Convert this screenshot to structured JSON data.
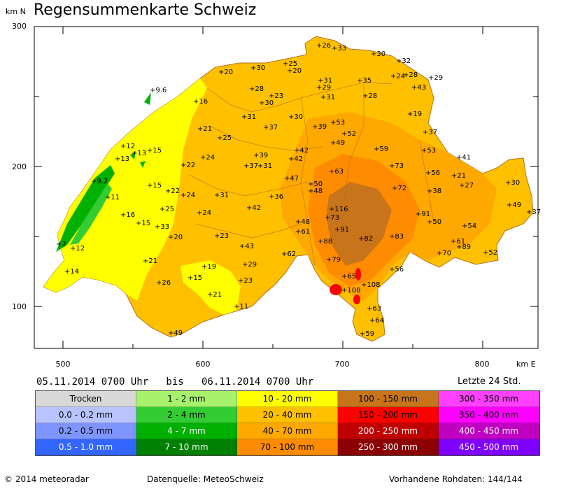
{
  "title": "Regensummenkarte Schweiz",
  "axes": {
    "y_unit": "km N",
    "x_unit": "km E",
    "y_ticks": [
      "300",
      "200",
      "100"
    ],
    "x_ticks": [
      "500",
      "600",
      "700",
      "800"
    ]
  },
  "period": "05.11.2014 0700 Uhr   bis   06.11.2014 0700 Uhr",
  "window_label": "Letzte 24 Std.",
  "legend": [
    {
      "label": "Trocken",
      "color": "#d8d8d8"
    },
    {
      "label": "1 - 2 mm",
      "color": "#a6f26b"
    },
    {
      "label": "10 - 20 mm",
      "color": "#ffff00"
    },
    {
      "label": "100 - 150 mm",
      "color": "#c8741a"
    },
    {
      "label": "300 - 350 mm",
      "color": "#ff40ff"
    },
    {
      "label": "0.0 - 0.2 mm",
      "color": "#b9c4ff"
    },
    {
      "label": "2 - 4 mm",
      "color": "#33cc33"
    },
    {
      "label": "20 - 40 mm",
      "color": "#ffc000"
    },
    {
      "label": "150 - 200 mm",
      "color": "#ff0000"
    },
    {
      "label": "350 - 400 mm",
      "color": "#ff00ff"
    },
    {
      "label": "0.2 - 0.5 mm",
      "color": "#7e95ff"
    },
    {
      "label": "4 - 7 mm",
      "color": "#00b000"
    },
    {
      "label": "40 - 70 mm",
      "color": "#ffa800"
    },
    {
      "label": "200 - 250 mm",
      "color": "#c00000"
    },
    {
      "label": "400 - 450 mm",
      "color": "#c000c0"
    },
    {
      "label": "0.5 - 1.0 mm",
      "color": "#3366ff"
    },
    {
      "label": "7 - 10 mm",
      "color": "#008000"
    },
    {
      "label": "70 - 100 mm",
      "color": "#ff8c00"
    },
    {
      "label": "250 - 300 mm",
      "color": "#8b0000"
    },
    {
      "label": "450 - 500 mm",
      "color": "#8000ff"
    }
  ],
  "stations": [
    "26",
    "33",
    "30",
    "32",
    "20",
    "30",
    "25",
    "20",
    "9.6",
    "28",
    "23",
    "30",
    "31",
    "29",
    "31",
    "35",
    "28",
    "24",
    "43",
    "29",
    "16",
    "28",
    "31",
    "30",
    "53",
    "39",
    "37",
    "19",
    "21",
    "25",
    "52",
    "49",
    "37",
    "59",
    "53",
    "41",
    "12",
    "15",
    "13",
    "39",
    "42",
    "13",
    "42",
    "24",
    "37",
    "31",
    "22",
    "73",
    "56",
    "21",
    "27",
    "30",
    "9.2",
    "63",
    "47",
    "50",
    "48",
    "15",
    "22",
    "24",
    "72",
    "38",
    "31",
    "36",
    "42",
    "11",
    "116",
    "49",
    "37",
    "25",
    "24",
    "16",
    "73",
    "48",
    "91",
    "50",
    "15",
    "33",
    "61",
    "54",
    "91",
    "20",
    "23",
    "88",
    "82",
    "83",
    "61",
    "43",
    "89",
    "70",
    "62",
    "52",
    "12",
    "2",
    "79",
    "21",
    "29",
    "56",
    "19",
    "14",
    "65",
    "15",
    "26",
    "108",
    "108",
    "23",
    "21",
    "11",
    "63",
    "64",
    "59",
    "49"
  ],
  "footer": {
    "copyright": "© 2014 meteoradar",
    "source": "Datenquelle: MeteoSchweiz",
    "raw": "Vorhandene Rohdaten: 144/144"
  }
}
